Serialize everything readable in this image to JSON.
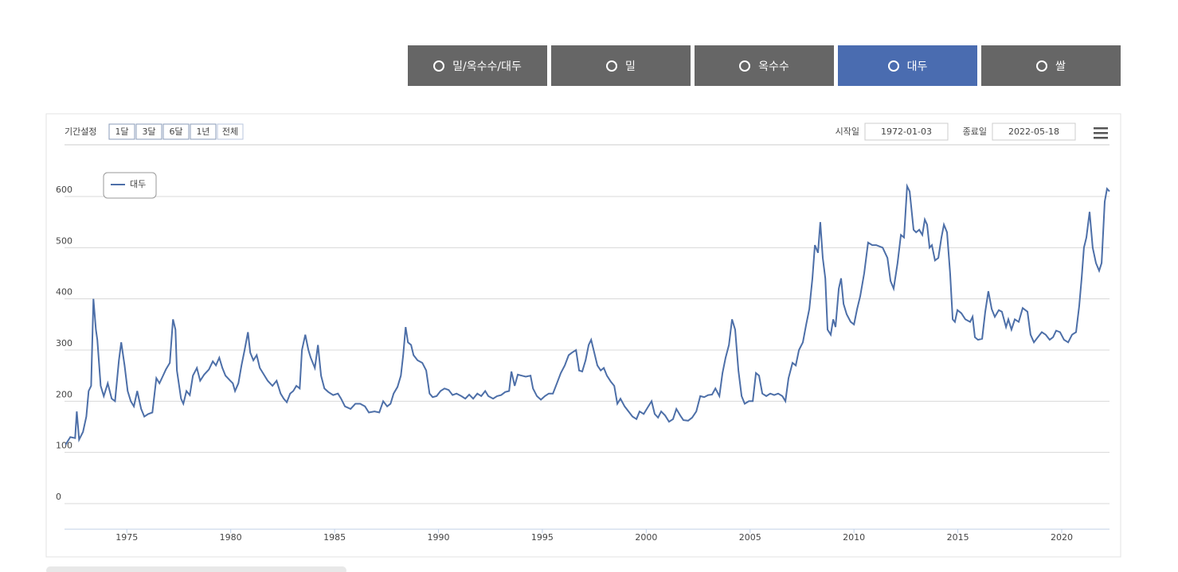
{
  "tabs": {
    "items": [
      "밀/옥수수/대두",
      "밀",
      "옥수수",
      "대두",
      "쌀"
    ],
    "active": 3
  },
  "controls": {
    "period_label": "기간설정",
    "periods": [
      "1달",
      "3달",
      "6달",
      "1년",
      "전체"
    ],
    "start_label": "시작일",
    "start": "1972-01-03",
    "end_label": "종료일",
    "end": "2022-05-18"
  },
  "chart_data": {
    "type": "line",
    "xlim": [
      1972,
      2022.3
    ],
    "ylim": [
      -50,
      700
    ],
    "xticks": [
      1975,
      1980,
      1985,
      1990,
      1995,
      2000,
      2005,
      2010,
      2015,
      2020
    ],
    "yticks": [
      0,
      100,
      200,
      300,
      400,
      500,
      600
    ],
    "grid": true,
    "legend": "top-left",
    "x": [
      1972.05,
      1972.28,
      1972.51,
      1972.59,
      1972.7,
      1972.89,
      1973.05,
      1973.16,
      1973.28,
      1973.39,
      1973.51,
      1973.58,
      1973.74,
      1973.89,
      1974.08,
      1974.27,
      1974.43,
      1974.62,
      1974.73,
      1974.89,
      1975.04,
      1975.19,
      1975.34,
      1975.5,
      1975.69,
      1975.84,
      1976.03,
      1976.23,
      1976.42,
      1976.57,
      1976.72,
      1976.88,
      1977.07,
      1977.22,
      1977.34,
      1977.41,
      1977.61,
      1977.72,
      1977.87,
      1978.03,
      1978.18,
      1978.37,
      1978.53,
      1978.72,
      1978.95,
      1979.14,
      1979.29,
      1979.45,
      1979.6,
      1979.75,
      1979.98,
      1980.1,
      1980.21,
      1980.37,
      1980.52,
      1980.67,
      1980.83,
      1980.94,
      1981.09,
      1981.25,
      1981.4,
      1981.55,
      1981.78,
      1982.01,
      1982.21,
      1982.4,
      1982.55,
      1982.7,
      1982.86,
      1983.01,
      1983.16,
      1983.32,
      1983.43,
      1983.59,
      1983.74,
      1983.85,
      1984.05,
      1984.2,
      1984.35,
      1984.51,
      1984.7,
      1984.93,
      1985.16,
      1985.31,
      1985.5,
      1985.77,
      1986.0,
      1986.23,
      1986.46,
      1986.65,
      1986.92,
      1987.15,
      1987.34,
      1987.53,
      1987.69,
      1987.84,
      1988.03,
      1988.19,
      1988.3,
      1988.42,
      1988.53,
      1988.68,
      1988.8,
      1988.99,
      1989.22,
      1989.41,
      1989.57,
      1989.72,
      1989.91,
      1990.1,
      1990.29,
      1990.49,
      1990.68,
      1990.87,
      1991.1,
      1991.29,
      1991.48,
      1991.67,
      1991.87,
      1992.06,
      1992.25,
      1992.4,
      1992.63,
      1992.82,
      1993.02,
      1993.21,
      1993.4,
      1993.51,
      1993.67,
      1993.82,
      1994.01,
      1994.2,
      1994.43,
      1994.55,
      1994.74,
      1994.93,
      1995.12,
      1995.31,
      1995.51,
      1995.7,
      1995.89,
      1996.08,
      1996.27,
      1996.43,
      1996.62,
      1996.77,
      1996.92,
      1997.08,
      1997.23,
      1997.35,
      1997.5,
      1997.65,
      1997.81,
      1997.96,
      1998.11,
      1998.3,
      1998.46,
      1998.61,
      1998.76,
      1998.96,
      1999.15,
      1999.34,
      1999.53,
      1999.68,
      1999.88,
      2000.07,
      2000.26,
      2000.41,
      2000.57,
      2000.72,
      2000.91,
      2001.1,
      2001.29,
      2001.45,
      2001.64,
      2001.79,
      2002.02,
      2002.21,
      2002.41,
      2002.6,
      2002.79,
      2002.98,
      2003.17,
      2003.33,
      2003.52,
      2003.67,
      2003.82,
      2003.98,
      2004.13,
      2004.28,
      2004.44,
      2004.59,
      2004.74,
      2004.94,
      2005.13,
      2005.28,
      2005.43,
      2005.59,
      2005.78,
      2005.97,
      2006.16,
      2006.35,
      2006.55,
      2006.7,
      2006.85,
      2007.04,
      2007.2,
      2007.35,
      2007.54,
      2007.7,
      2007.85,
      2008.0,
      2008.12,
      2008.27,
      2008.38,
      2008.5,
      2008.62,
      2008.73,
      2008.88,
      2009.0,
      2009.11,
      2009.27,
      2009.38,
      2009.5,
      2009.65,
      2009.84,
      2010.0,
      2010.15,
      2010.3,
      2010.49,
      2010.68,
      2010.88,
      2011.07,
      2011.38,
      2011.61,
      2011.76,
      2011.91,
      2012.1,
      2012.26,
      2012.41,
      2012.56,
      2012.68,
      2012.87,
      2012.99,
      2013.14,
      2013.29,
      2013.41,
      2013.52,
      2013.64,
      2013.75,
      2013.9,
      2014.06,
      2014.21,
      2014.33,
      2014.48,
      2014.63,
      2014.75,
      2014.86,
      2014.98,
      2015.17,
      2015.36,
      2015.59,
      2015.71,
      2015.82,
      2015.97,
      2016.17,
      2016.32,
      2016.47,
      2016.63,
      2016.78,
      2016.97,
      2017.12,
      2017.32,
      2017.43,
      2017.58,
      2017.74,
      2017.93,
      2018.12,
      2018.35,
      2018.5,
      2018.66,
      2018.85,
      2019.04,
      2019.23,
      2019.42,
      2019.58,
      2019.73,
      2019.92,
      2020.11,
      2020.31,
      2020.5,
      2020.69,
      2020.84,
      2020.96,
      2021.07,
      2021.19,
      2021.34,
      2021.49,
      2021.65,
      2021.8,
      2021.92,
      2022.07,
      2022.18,
      2022.3
    ],
    "series": [
      {
        "name": "대두",
        "color": "#4d6fa8",
        "values": [
          115,
          130,
          128,
          180,
          125,
          140,
          170,
          220,
          230,
          400,
          340,
          320,
          230,
          210,
          235,
          205,
          200,
          280,
          315,
          270,
          220,
          200,
          190,
          220,
          185,
          170,
          175,
          178,
          245,
          235,
          248,
          262,
          275,
          360,
          340,
          260,
          205,
          195,
          220,
          212,
          250,
          265,
          240,
          252,
          262,
          278,
          270,
          285,
          265,
          250,
          240,
          235,
          220,
          235,
          270,
          300,
          335,
          295,
          280,
          290,
          265,
          255,
          240,
          230,
          240,
          215,
          205,
          198,
          215,
          220,
          230,
          225,
          300,
          330,
          300,
          285,
          265,
          310,
          250,
          225,
          218,
          212,
          215,
          205,
          190,
          185,
          195,
          195,
          190,
          178,
          180,
          178,
          200,
          190,
          195,
          215,
          228,
          250,
          290,
          345,
          315,
          310,
          290,
          280,
          275,
          260,
          215,
          208,
          210,
          220,
          225,
          222,
          212,
          215,
          210,
          205,
          213,
          205,
          215,
          210,
          220,
          210,
          205,
          210,
          212,
          218,
          220,
          258,
          230,
          252,
          250,
          248,
          250,
          225,
          210,
          203,
          210,
          215,
          215,
          235,
          255,
          270,
          290,
          295,
          300,
          260,
          258,
          280,
          310,
          320,
          295,
          270,
          260,
          265,
          250,
          238,
          230,
          195,
          205,
          190,
          180,
          170,
          165,
          180,
          175,
          188,
          200,
          175,
          168,
          180,
          172,
          160,
          165,
          185,
          172,
          163,
          162,
          168,
          180,
          210,
          208,
          212,
          213,
          225,
          210,
          255,
          285,
          310,
          360,
          340,
          260,
          210,
          195,
          200,
          200,
          255,
          250,
          215,
          210,
          215,
          212,
          215,
          210,
          200,
          245,
          275,
          270,
          300,
          315,
          350,
          380,
          440,
          505,
          490,
          550,
          480,
          440,
          340,
          330,
          360,
          345,
          420,
          440,
          390,
          370,
          355,
          350,
          380,
          405,
          450,
          510,
          505,
          505,
          500,
          480,
          435,
          420,
          470,
          525,
          520,
          620,
          610,
          535,
          530,
          535,
          525,
          555,
          545,
          500,
          505,
          475,
          480,
          520,
          545,
          530,
          450,
          360,
          355,
          378,
          372,
          360,
          355,
          365,
          325,
          320,
          322,
          375,
          415,
          380,
          365,
          378,
          375,
          345,
          360,
          340,
          360,
          355,
          382,
          375,
          330,
          315,
          325,
          335,
          330,
          320,
          325,
          338,
          335,
          320,
          315,
          330,
          335,
          385,
          440,
          500,
          520,
          570,
          500,
          470,
          455,
          470,
          590,
          615,
          610
        ]
      }
    ]
  }
}
